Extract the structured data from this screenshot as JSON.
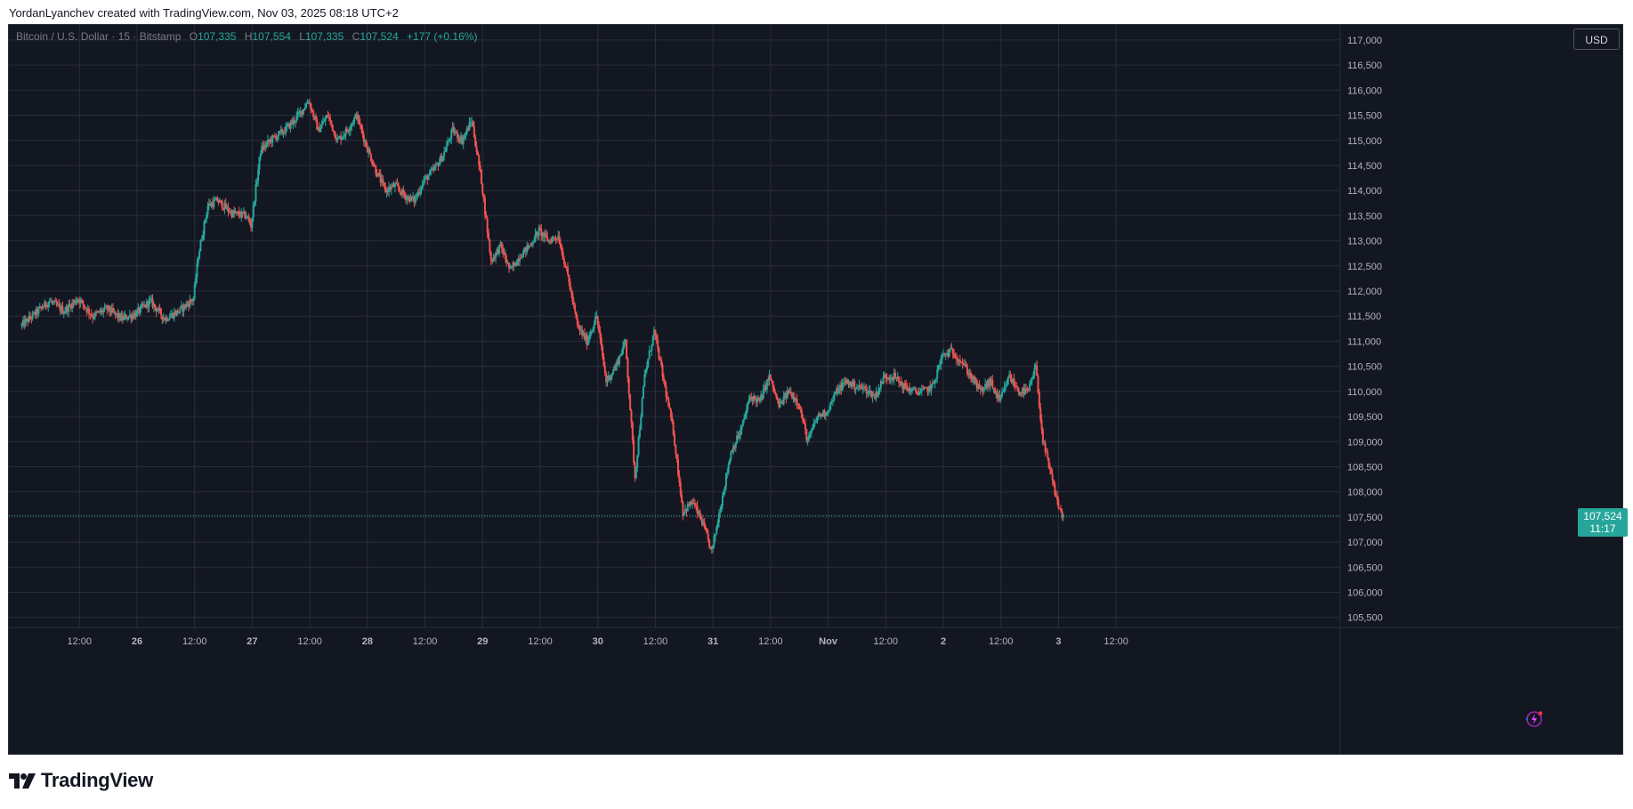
{
  "header": {
    "caption": "YordanLyanchev created with TradingView.com, Nov 03, 2025 08:18 UTC+2"
  },
  "legend": {
    "symbol": "Bitcoin / U.S. Dollar · 15 · Bitstamp",
    "o_label": "O",
    "o_value": "107,335",
    "h_label": "H",
    "h_value": "107,554",
    "l_label": "L",
    "l_value": "107,335",
    "c_label": "C",
    "c_value": "107,524",
    "change": "+177 (+0.16%)"
  },
  "currency_button": "USD",
  "last_price": {
    "price": "107,524",
    "countdown": "11:17"
  },
  "footer": {
    "logo_text": "TradingView"
  },
  "colors": {
    "background": "#131722",
    "grid": "#2a2e39",
    "up": "#26a69a",
    "down": "#ef5350",
    "axis_text": "#b2b5be",
    "price_line": "#26a69a",
    "bolt": "#9c27b0"
  },
  "icons": {
    "bolt": "lightning-bolt-icon",
    "logo": "tradingview-logo-icon"
  },
  "chart_data": {
    "type": "candlestick",
    "title": "",
    "symbol": "Bitcoin / U.S. Dollar",
    "interval": "15",
    "exchange": "Bitstamp",
    "ylim": [
      105300,
      117300
    ],
    "y_ticks": [
      105500,
      106000,
      106500,
      107000,
      107500,
      108000,
      108500,
      109000,
      109500,
      110000,
      110500,
      111000,
      111500,
      112000,
      112500,
      113000,
      113500,
      114000,
      114500,
      115000,
      115500,
      116000,
      116500,
      117000
    ],
    "y_tick_labels": [
      "105,500",
      "106,000",
      "106,500",
      "107,000",
      "107,500",
      "108,000",
      "108,500",
      "109,000",
      "109,500",
      "110,000",
      "110,500",
      "111,000",
      "111,500",
      "112,000",
      "112,500",
      "113,000",
      "113,500",
      "114,000",
      "114,500",
      "115,000",
      "115,500",
      "116,000",
      "116,500",
      "117,000"
    ],
    "x_range_hours": [
      -62.7,
      214.7
    ],
    "x_ticks": [
      {
        "label": "12:00",
        "hour": -48
      },
      {
        "label": "26",
        "hour": -36
      },
      {
        "label": "12:00",
        "hour": -24
      },
      {
        "label": "27",
        "hour": -12
      },
      {
        "label": "12:00",
        "hour": 0
      },
      {
        "label": "28",
        "hour": 12
      },
      {
        "label": "12:00",
        "hour": 24
      },
      {
        "label": "29",
        "hour": 36
      },
      {
        "label": "12:00",
        "hour": 48
      },
      {
        "label": "30",
        "hour": 60
      },
      {
        "label": "12:00",
        "hour": 72
      },
      {
        "label": "31",
        "hour": 84
      },
      {
        "label": "12:00",
        "hour": 96
      },
      {
        "label": "Nov",
        "hour": 108
      },
      {
        "label": "12:00",
        "hour": 120
      },
      {
        "label": "2",
        "hour": 132
      },
      {
        "label": "12:00",
        "hour": 144
      },
      {
        "label": "3",
        "hour": 156
      },
      {
        "label": "12:00",
        "hour": 168
      }
    ],
    "last_close": 107524,
    "price_path": [
      [
        -60,
        111300
      ],
      [
        -57,
        111550
      ],
      [
        -54,
        111800
      ],
      [
        -51,
        111600
      ],
      [
        -48,
        111850
      ],
      [
        -45,
        111500
      ],
      [
        -42,
        111650
      ],
      [
        -39,
        111450
      ],
      [
        -36,
        111550
      ],
      [
        -33,
        111800
      ],
      [
        -30,
        111450
      ],
      [
        -27,
        111600
      ],
      [
        -24,
        111850
      ],
      [
        -23,
        112700
      ],
      [
        -21,
        113700
      ],
      [
        -19,
        113800
      ],
      [
        -16,
        113550
      ],
      [
        -13,
        113500
      ],
      [
        -12,
        113300
      ],
      [
        -10,
        114800
      ],
      [
        -8,
        115000
      ],
      [
        -5,
        115200
      ],
      [
        -3,
        115400
      ],
      [
        -1,
        115650
      ],
      [
        0,
        115800
      ],
      [
        2,
        115200
      ],
      [
        4,
        115500
      ],
      [
        6,
        115000
      ],
      [
        8,
        115200
      ],
      [
        10,
        115500
      ],
      [
        12,
        114900
      ],
      [
        14,
        114400
      ],
      [
        16,
        114000
      ],
      [
        18,
        114100
      ],
      [
        20,
        113900
      ],
      [
        22,
        113800
      ],
      [
        24,
        114200
      ],
      [
        26,
        114400
      ],
      [
        28,
        114700
      ],
      [
        30,
        115200
      ],
      [
        32,
        115000
      ],
      [
        34,
        115400
      ],
      [
        36,
        114200
      ],
      [
        38,
        112600
      ],
      [
        40,
        112900
      ],
      [
        42,
        112400
      ],
      [
        44,
        112700
      ],
      [
        46,
        112900
      ],
      [
        48,
        113200
      ],
      [
        50,
        113000
      ],
      [
        52,
        113100
      ],
      [
        54,
        112300
      ],
      [
        56,
        111300
      ],
      [
        58,
        111000
      ],
      [
        60,
        111500
      ],
      [
        62,
        110200
      ],
      [
        64,
        110500
      ],
      [
        66,
        111000
      ],
      [
        68,
        108300
      ],
      [
        70,
        110300
      ],
      [
        72,
        111200
      ],
      [
        74,
        110200
      ],
      [
        76,
        109200
      ],
      [
        78,
        107600
      ],
      [
        80,
        107800
      ],
      [
        82,
        107400
      ],
      [
        84,
        106800
      ],
      [
        86,
        107800
      ],
      [
        88,
        108800
      ],
      [
        90,
        109200
      ],
      [
        92,
        109900
      ],
      [
        94,
        109800
      ],
      [
        96,
        110300
      ],
      [
        98,
        109700
      ],
      [
        100,
        110000
      ],
      [
        102,
        109800
      ],
      [
        104,
        109000
      ],
      [
        106,
        109500
      ],
      [
        108,
        109600
      ],
      [
        110,
        110000
      ],
      [
        112,
        110200
      ],
      [
        114,
        110100
      ],
      [
        116,
        110050
      ],
      [
        118,
        109900
      ],
      [
        120,
        110300
      ],
      [
        122,
        110300
      ],
      [
        124,
        110100
      ],
      [
        126,
        110000
      ],
      [
        128,
        110000
      ],
      [
        130,
        110100
      ],
      [
        132,
        110700
      ],
      [
        134,
        110800
      ],
      [
        136,
        110600
      ],
      [
        138,
        110300
      ],
      [
        140,
        110000
      ],
      [
        142,
        110200
      ],
      [
        144,
        109800
      ],
      [
        146,
        110300
      ],
      [
        148,
        110000
      ],
      [
        150,
        110000
      ],
      [
        151.5,
        110500
      ],
      [
        153,
        109000
      ],
      [
        155,
        108200
      ],
      [
        156,
        107800
      ],
      [
        157,
        107524
      ]
    ]
  }
}
